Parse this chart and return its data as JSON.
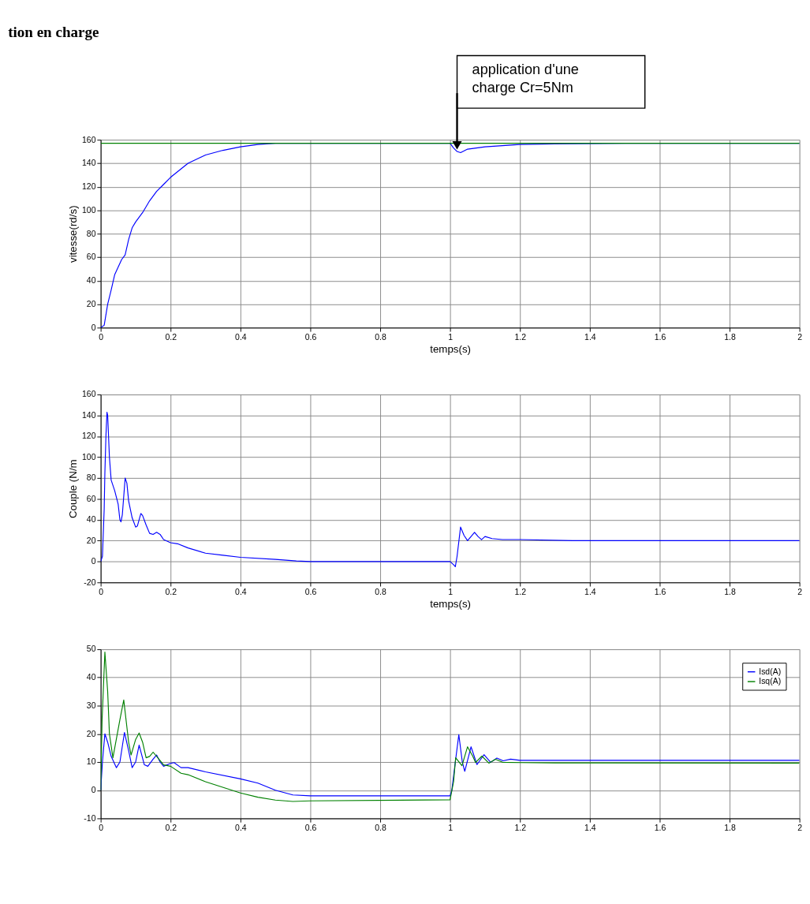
{
  "chart_data": [
    {
      "type": "line",
      "title": "tion en charge",
      "xlabel": "temps(s)",
      "ylabel": "vitesse(rd/s)",
      "xlim": [
        0,
        2
      ],
      "xticks": [
        0,
        0.2,
        0.4,
        0.6,
        0.8,
        1,
        1.2,
        1.4,
        1.6,
        1.8,
        2
      ],
      "ylim": [
        0,
        160
      ],
      "yticks": [
        0,
        20,
        40,
        60,
        80,
        100,
        120,
        140,
        160
      ],
      "grid": true,
      "legend": false,
      "annotations": [
        {
          "text": "application d'une\ncharge Cr=5Nm",
          "x": 1.02,
          "y": 152
        }
      ],
      "series": [
        {
          "color": "#0000ff",
          "x": [
            0,
            0.01,
            0.02,
            0.03,
            0.04,
            0.06,
            0.07,
            0.08,
            0.09,
            0.1,
            0.12,
            0.14,
            0.16,
            0.18,
            0.2,
            0.25,
            0.3,
            0.35,
            0.4,
            0.45,
            0.5,
            1.0,
            1.01,
            1.02,
            1.03,
            1.05,
            1.1,
            1.2,
            1.3,
            1.5,
            2
          ],
          "values": [
            0,
            2,
            20,
            32,
            45,
            58,
            62,
            75,
            85,
            90,
            98,
            108,
            116,
            122,
            128,
            140,
            147,
            151,
            154,
            156,
            157,
            157,
            153,
            150,
            149,
            152,
            154,
            156,
            156.5,
            157,
            157
          ]
        },
        {
          "color": "#008000",
          "x": [
            0,
            2
          ],
          "values": [
            157,
            157
          ]
        }
      ]
    },
    {
      "type": "line",
      "xlabel": "temps(s)",
      "ylabel": "Couple (N/m",
      "xlim": [
        0,
        2
      ],
      "xticks": [
        0,
        0.2,
        0.4,
        0.6,
        0.8,
        1,
        1.2,
        1.4,
        1.6,
        1.8,
        2
      ],
      "ylim": [
        -20,
        160
      ],
      "yticks": [
        -20,
        0,
        20,
        40,
        60,
        80,
        100,
        120,
        140,
        160
      ],
      "grid": true,
      "legend": false,
      "series": [
        {
          "color": "#0000ff",
          "x": [
            0,
            0.005,
            0.01,
            0.012,
            0.015,
            0.018,
            0.02,
            0.025,
            0.03,
            0.04,
            0.05,
            0.055,
            0.058,
            0.062,
            0.07,
            0.075,
            0.08,
            0.09,
            0.1,
            0.105,
            0.115,
            0.12,
            0.13,
            0.14,
            0.15,
            0.16,
            0.17,
            0.18,
            0.2,
            0.22,
            0.25,
            0.3,
            0.35,
            0.4,
            0.5,
            0.56,
            0.6,
            1.0,
            1.01,
            1.015,
            1.02,
            1.03,
            1.04,
            1.05,
            1.06,
            1.07,
            1.08,
            1.09,
            1.1,
            1.12,
            1.15,
            1.2,
            1.35,
            2
          ],
          "values": [
            0,
            5,
            50,
            85,
            120,
            143,
            140,
            100,
            78,
            68,
            55,
            40,
            38,
            45,
            80,
            75,
            58,
            42,
            33,
            34,
            46,
            44,
            35,
            27,
            26,
            28,
            26,
            21,
            18,
            17,
            13,
            8,
            6,
            4,
            2,
            0.5,
            0,
            0,
            -3,
            -5,
            5,
            33,
            25,
            20,
            24,
            28,
            24,
            21,
            24,
            22,
            21,
            21,
            20,
            20
          ]
        }
      ]
    },
    {
      "type": "line",
      "xlim": [
        0,
        2
      ],
      "xticks": [
        0,
        0.2,
        0.4,
        0.6,
        0.8,
        1,
        1.2,
        1.4,
        1.6,
        1.8,
        2
      ],
      "ylim": [
        -10,
        50
      ],
      "yticks": [
        -10,
        0,
        10,
        20,
        30,
        40,
        50
      ],
      "grid": true,
      "legend": "top right",
      "series": [
        {
          "name": "Isd(A)",
          "color": "#0000ff",
          "x": [
            0,
            0.005,
            0.012,
            0.02,
            0.03,
            0.045,
            0.055,
            0.068,
            0.08,
            0.09,
            0.1,
            0.11,
            0.125,
            0.135,
            0.15,
            0.16,
            0.17,
            0.18,
            0.2,
            0.21,
            0.23,
            0.25,
            0.3,
            0.4,
            0.45,
            0.5,
            0.55,
            0.6,
            1.0,
            1.005,
            1.015,
            1.025,
            1.035,
            1.042,
            1.06,
            1.077,
            1.097,
            1.116,
            1.134,
            1.152,
            1.173,
            1.2,
            2
          ],
          "values": [
            0,
            10,
            20,
            17,
            12,
            8,
            10,
            20.5,
            14,
            8,
            10,
            16,
            9,
            8.5,
            11,
            12.5,
            10,
            8.5,
            9.5,
            9.8,
            8,
            8,
            6.5,
            4,
            2.5,
            0,
            -1.7,
            -2,
            -2,
            0,
            10,
            19.7,
            10,
            6.7,
            15.4,
            9.1,
            12.6,
            9.9,
            11.4,
            10.4,
            11,
            10.6,
            10.6
          ]
        },
        {
          "name": "Isq(A)",
          "color": "#008000",
          "x": [
            0,
            0.004,
            0.012,
            0.02,
            0.025,
            0.035,
            0.055,
            0.066,
            0.08,
            0.087,
            0.1,
            0.11,
            0.12,
            0.13,
            0.14,
            0.15,
            0.17,
            0.18,
            0.2,
            0.23,
            0.25,
            0.3,
            0.4,
            0.45,
            0.5,
            0.55,
            0.6,
            1.0,
            1.01,
            1.016,
            1.034,
            1.05,
            1.065,
            1.073,
            1.091,
            1.111,
            1.13,
            1.15,
            1.2,
            1.3,
            2
          ],
          "values": [
            0,
            25,
            49,
            35,
            20,
            11.5,
            25,
            32,
            17,
            12.5,
            18,
            20.3,
            17,
            11.5,
            12,
            13.5,
            10.5,
            9,
            8.5,
            6,
            5.5,
            3,
            -1,
            -2.5,
            -3.5,
            -4,
            -3.8,
            -3.4,
            3,
            11.5,
            8.7,
            15.4,
            12,
            9.8,
            12.1,
            9.6,
            11,
            9.9,
            9.8,
            9.7,
            9.6
          ]
        }
      ]
    }
  ]
}
